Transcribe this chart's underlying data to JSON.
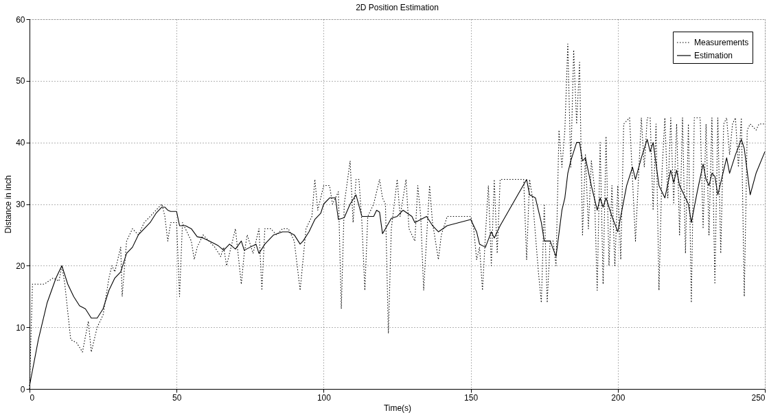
{
  "chart_data": {
    "type": "line",
    "title": "2D Position Estimation",
    "xlabel": "Time(s)",
    "ylabel": "Distance in inch",
    "xlim": [
      0,
      250
    ],
    "xticks": [
      0,
      50,
      100,
      150,
      200,
      250
    ],
    "ylim": [
      0,
      60
    ],
    "yticks": [
      0,
      10,
      20,
      30,
      40,
      50,
      60
    ],
    "grid": true,
    "legend": "top right",
    "marker": "none",
    "series": [
      {
        "name": "Measurements",
        "color": "#000000",
        "line_style": "dotted",
        "x": [
          0,
          1,
          5,
          8,
          10,
          11,
          12,
          14,
          16,
          18,
          20,
          21,
          23,
          25,
          27,
          28,
          29,
          31,
          31.5,
          33,
          35,
          37,
          39,
          41,
          43,
          45,
          46,
          47,
          48,
          50,
          51,
          52,
          53,
          55,
          56,
          57,
          59,
          61,
          63,
          65,
          66,
          67,
          68,
          70,
          72,
          73,
          74,
          76,
          78,
          79,
          80,
          82,
          84,
          86,
          88,
          90,
          92,
          94,
          96,
          97,
          98,
          100,
          102,
          103,
          105,
          106,
          107,
          109,
          110,
          111,
          112,
          113,
          114,
          115,
          117,
          119,
          120,
          121,
          122,
          123,
          125,
          126,
          128,
          129,
          131,
          132,
          133,
          134,
          136,
          137,
          139,
          140,
          142,
          145,
          150,
          151,
          152,
          153,
          154,
          155,
          156,
          157,
          158,
          159,
          160,
          161,
          165,
          168,
          169,
          170,
          171,
          173,
          174,
          175,
          176,
          177,
          178,
          179,
          180,
          181,
          182,
          183,
          184,
          185,
          186,
          187,
          188,
          189,
          190,
          191,
          192,
          193,
          194,
          195,
          196,
          197,
          198,
          199,
          200,
          201,
          202,
          204,
          206,
          208,
          209,
          210,
          211,
          212,
          213,
          214,
          215,
          216,
          217,
          218,
          219,
          220,
          221,
          222,
          223,
          224,
          225,
          226,
          228,
          229,
          230,
          231,
          232,
          233,
          234,
          235,
          236,
          237,
          238,
          239,
          240,
          241,
          242,
          243,
          244,
          245,
          247,
          248,
          250
        ],
        "values": [
          0,
          17,
          17,
          18,
          17.5,
          20,
          17,
          8,
          7.5,
          6,
          11,
          6,
          10,
          12,
          18,
          20,
          19,
          23,
          15,
          24,
          26,
          25,
          27,
          28,
          29,
          30,
          28,
          24,
          27,
          27,
          15,
          27,
          26,
          24,
          21,
          23,
          25,
          24,
          23,
          21.5,
          23,
          20,
          22,
          26,
          17,
          22,
          25,
          22,
          26,
          16,
          26,
          26,
          25,
          26,
          26,
          24,
          16,
          26,
          28,
          34,
          29,
          33,
          33,
          30,
          32,
          13,
          30,
          37,
          27,
          34,
          34,
          27,
          16,
          28,
          30,
          34,
          31,
          30,
          9,
          26,
          34,
          28,
          34,
          26,
          24,
          33,
          28,
          16,
          33,
          27,
          21,
          25,
          28,
          28,
          28,
          26,
          21,
          23,
          16,
          25,
          33,
          20,
          34,
          22,
          34,
          34,
          34,
          34,
          21,
          34,
          31,
          19,
          14,
          30,
          14,
          24,
          24,
          20,
          42,
          36,
          42,
          56,
          36,
          55,
          43,
          53,
          25,
          38,
          26,
          37,
          33,
          16,
          40,
          17,
          41,
          20,
          33,
          20,
          33,
          21,
          43,
          44,
          24,
          44,
          36,
          44,
          44,
          29,
          43,
          16,
          35,
          44,
          31,
          44,
          30,
          43,
          25,
          44,
          22,
          43,
          14,
          44,
          44,
          26,
          43,
          25,
          44,
          17,
          44,
          22,
          43,
          44,
          38,
          43,
          44,
          36,
          44,
          15,
          42,
          43,
          42,
          43,
          43
        ]
      },
      {
        "name": "Estimation",
        "color": "#000000",
        "line_style": "solid",
        "x": [
          0,
          3,
          6,
          9,
          11,
          13,
          15,
          17,
          19,
          21,
          23,
          25,
          27,
          29,
          31,
          33,
          35,
          37,
          39,
          41,
          43,
          45,
          46,
          47,
          48,
          50,
          51,
          53,
          55,
          57,
          59,
          62,
          64,
          66,
          68,
          70,
          72,
          73,
          75,
          77,
          78,
          80,
          83,
          86,
          88,
          90,
          92,
          93,
          95,
          97,
          99,
          100,
          102,
          104,
          105,
          107,
          109,
          111,
          113,
          117,
          118,
          119,
          120,
          121,
          123,
          125,
          127,
          130,
          131,
          133,
          135,
          137,
          139,
          142,
          146,
          150,
          152,
          153,
          155,
          157,
          158,
          160,
          163,
          166,
          169,
          170,
          172,
          174,
          175,
          177,
          179,
          181,
          182,
          183,
          184,
          186,
          187,
          188,
          189,
          191,
          193,
          194,
          195,
          196,
          198,
          200,
          203,
          205,
          206,
          208,
          210,
          211,
          212,
          214,
          216,
          218,
          219,
          220,
          221,
          222,
          224,
          225,
          227,
          229,
          230,
          231,
          232,
          233,
          234,
          237,
          238,
          240,
          242,
          243,
          245,
          247,
          250
        ],
        "values": [
          0.5,
          8,
          14,
          18,
          20,
          17,
          15,
          13.5,
          13,
          11.5,
          11.5,
          13,
          16,
          18,
          19,
          22,
          23,
          25,
          26,
          27,
          28.5,
          29.5,
          29.5,
          29,
          28.8,
          28.8,
          26.5,
          26.5,
          26,
          24.7,
          24.5,
          23.8,
          23.3,
          22.5,
          23.5,
          22.7,
          24,
          22.5,
          23,
          23.5,
          22,
          23.5,
          25,
          25.5,
          25.5,
          25,
          23.5,
          24,
          25.5,
          27.5,
          28.5,
          30,
          31,
          31,
          27.5,
          27.8,
          30,
          31.5,
          28,
          28,
          29,
          28.7,
          25.2,
          26,
          27.7,
          28,
          29,
          28,
          27,
          27.5,
          28,
          26.5,
          25.5,
          26.5,
          27,
          27.5,
          25.5,
          23.5,
          23,
          25.5,
          24.5,
          26.5,
          29,
          31.5,
          34,
          31.5,
          31,
          27,
          24,
          24,
          21.5,
          29,
          31,
          35,
          37,
          40,
          40,
          37,
          37.5,
          33,
          29,
          31,
          29.5,
          31,
          28,
          25.5,
          33,
          36,
          34,
          37.5,
          40.5,
          38.5,
          40,
          33,
          31,
          35.5,
          33.5,
          35.5,
          33,
          32,
          30,
          27,
          32,
          36.5,
          34,
          33,
          35,
          34.5,
          31.5,
          37.5,
          35,
          38,
          40.5,
          39,
          31.5,
          35,
          38.5
        ]
      }
    ]
  }
}
